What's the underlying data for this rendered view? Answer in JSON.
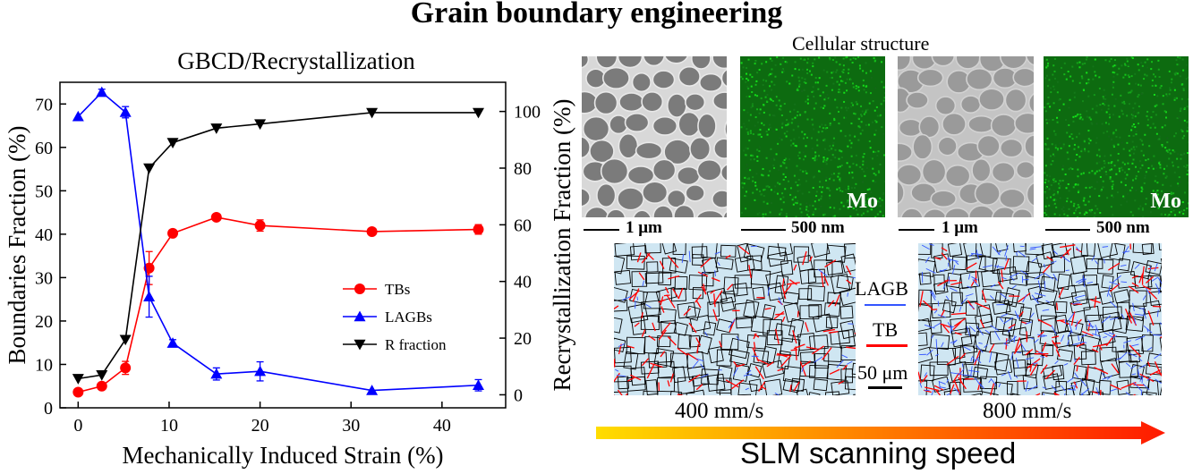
{
  "title": "Grain boundary engineering",
  "chart_data": {
    "type": "line",
    "title": "GBCD/Recrystallization",
    "xlabel": "Mechanically Induced Strain (%)",
    "ylabel": "Boundaries Fraction (%)",
    "y2label": "Recrystallization Fraction (%)",
    "xlim": [
      -2,
      47
    ],
    "ylim": [
      0,
      75
    ],
    "y2lim": [
      -4.6,
      110.3
    ],
    "xticks": [
      "0",
      "10",
      "20",
      "30",
      "40"
    ],
    "yticks": [
      "0",
      "10",
      "20",
      "30",
      "40",
      "50",
      "60",
      "70"
    ],
    "y2ticks": [
      "0",
      "20",
      "40",
      "60",
      "80",
      "100"
    ],
    "legend_position": "center-right",
    "series": [
      {
        "name": "TBs",
        "axis": "left",
        "color": "#ff0000",
        "marker": "circle",
        "x": [
          0,
          2.6,
          5.2,
          7.8,
          10.4,
          15.2,
          20,
          32.3,
          44
        ],
        "y": [
          3.6,
          5,
          9.2,
          32.2,
          40.2,
          43.9,
          42,
          40.6,
          41.1
        ],
        "err": [
          0,
          0,
          1.5,
          3.8,
          0,
          0,
          1.3,
          0,
          1.1
        ]
      },
      {
        "name": "LAGBs",
        "axis": "left",
        "color": "#0000ff",
        "marker": "triangle-up",
        "x": [
          0,
          2.6,
          5.2,
          7.8,
          10.4,
          15.2,
          20,
          32.3,
          44
        ],
        "y": [
          67.1,
          72.7,
          68.1,
          25.6,
          14.9,
          7.8,
          8.4,
          4.0,
          5.2
        ],
        "err": [
          0,
          0.7,
          1.3,
          4.7,
          0.8,
          1.4,
          2.2,
          0,
          1.3
        ]
      },
      {
        "name": "R fraction",
        "axis": "right",
        "color": "#000000",
        "marker": "triangle-down",
        "x": [
          0,
          2.6,
          5.2,
          7.8,
          10.4,
          15.2,
          20,
          32.3,
          44
        ],
        "y": [
          5.7,
          7,
          19.5,
          80,
          89,
          94.1,
          95.6,
          99.6,
          99.6
        ],
        "err": [
          0,
          0,
          0,
          0,
          0,
          0,
          0,
          0,
          0
        ]
      }
    ]
  },
  "micrographs": {
    "heading": "Cellular structure",
    "panels": [
      {
        "scale": "1 μm",
        "element": ""
      },
      {
        "scale": "500 nm",
        "element": "Mo"
      },
      {
        "scale": "1 μm",
        "element": ""
      },
      {
        "scale": "500 nm",
        "element": "Mo"
      }
    ]
  },
  "ebsd": {
    "legend_lagb": "LAGB",
    "legend_tb": "TB",
    "scale": "50 μm",
    "speed_left": "400 mm/s",
    "speed_right": "800 mm/s",
    "lagb_color": "#3355ff",
    "tb_color": "#ff0000"
  },
  "arrow": {
    "label": "SLM scanning speed",
    "start_color": "#ffdd00",
    "end_color": "#ff1a00"
  }
}
